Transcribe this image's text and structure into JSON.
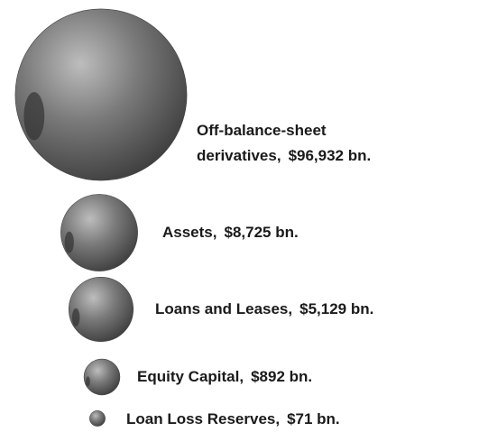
{
  "chart_data": {
    "type": "sphere",
    "categories": [
      "Off-balance-sheet derivatives,",
      "Assets,",
      "Loans and Leases,",
      "Equity Capital,",
      "Loan Loss Reserves,"
    ],
    "values": [
      96932,
      8725,
      5129,
      892,
      71
    ],
    "value_labels": [
      "$96,932 bn.",
      "$8,725 bn.",
      "$5,129 bn.",
      "$892 bn.",
      "$71 bn."
    ],
    "color": "#6e6e6e"
  }
}
